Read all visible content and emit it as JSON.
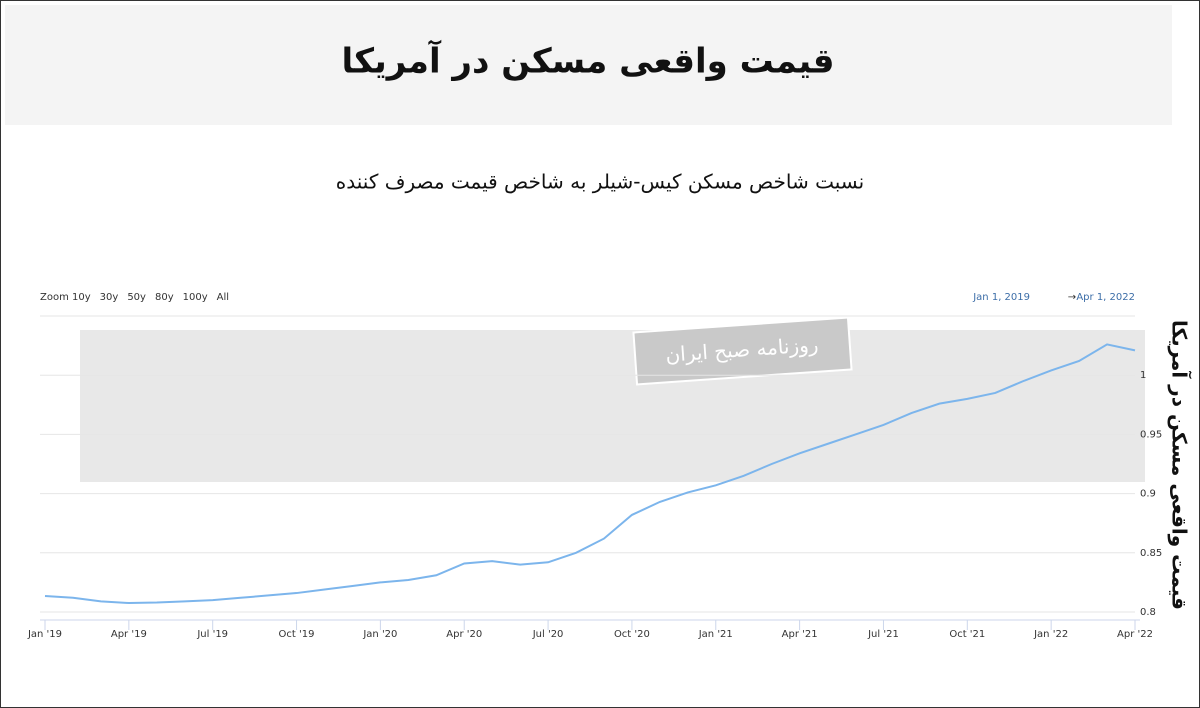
{
  "chart_data": {
    "type": "line",
    "title": "قیمت واقعی مسکن در آمریکا",
    "subtitle": "نسبت شاخص مسکن کیس-شیلر به شاخص قیمت مصرف کننده",
    "y_axis_label": "قیمت واقعی مسکن در آمریکا",
    "watermark": "روزنامه صبح ایران",
    "zoom_label": "Zoom",
    "range_buttons": [
      "10y",
      "30y",
      "50y",
      "80y",
      "100y",
      "All"
    ],
    "date_range": [
      "Jan 1, 2019",
      "Apr 1, 2022"
    ],
    "categories": [
      "Jan '19",
      null,
      null,
      "Apr '19",
      null,
      null,
      "Jul '19",
      null,
      null,
      "Oct '19",
      null,
      null,
      "Jan '20",
      null,
      null,
      "Apr '20",
      null,
      null,
      "Jul '20",
      null,
      null,
      "Oct '20",
      null,
      null,
      "Jan '21",
      null,
      null,
      "Apr '21",
      null,
      null,
      "Jul '21",
      null,
      null,
      "Oct '21",
      null,
      null,
      "Jan '22",
      null,
      null,
      "Apr '22"
    ],
    "series": [
      {
        "name": "قیمت واقعی مسکن در آمریکا",
        "color": "#7cb5ec",
        "values": [
          0.8135,
          0.812,
          0.809,
          0.8076,
          0.808,
          0.809,
          0.81,
          0.812,
          0.814,
          0.816,
          0.819,
          0.822,
          0.825,
          0.827,
          0.831,
          0.841,
          0.843,
          0.84,
          0.842,
          0.85,
          0.862,
          0.882,
          0.893,
          0.901,
          0.907,
          0.915,
          0.925,
          0.934,
          0.942,
          0.95,
          0.958,
          0.968,
          0.976,
          0.98,
          0.985,
          0.995,
          1.004,
          1.012,
          1.026,
          1.021
        ]
      }
    ],
    "ylim": [
      0.8,
      1.05
    ],
    "yticks": [
      0.8,
      0.85,
      0.9,
      0.95,
      1
    ],
    "grid": true
  }
}
